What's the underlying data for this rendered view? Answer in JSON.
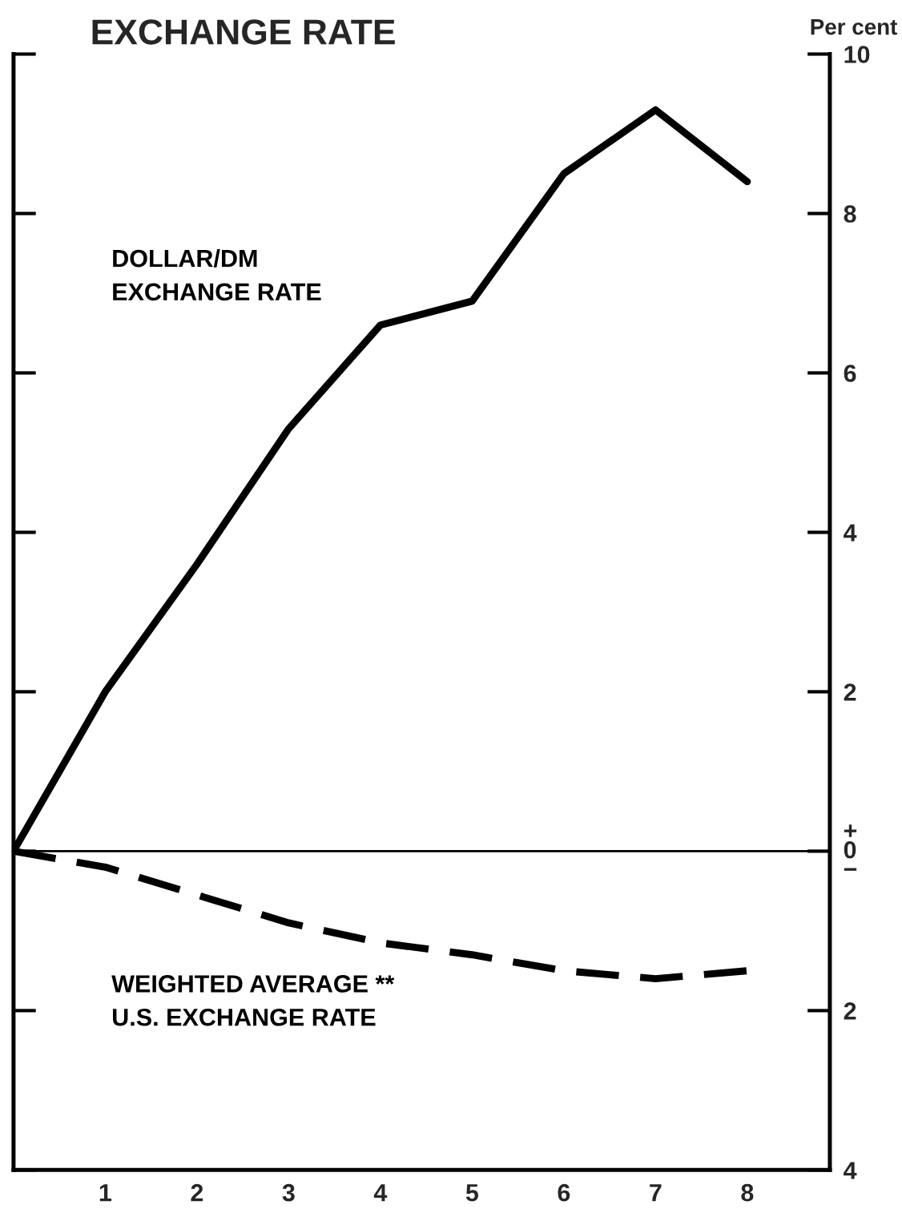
{
  "chart_data": {
    "type": "line",
    "title": "EXCHANGE RATE",
    "ylabel": "Per cent",
    "x": [
      0,
      1,
      2,
      3,
      4,
      5,
      6,
      7,
      8
    ],
    "series": [
      {
        "name": "DOLLAR/DM\nEXCHANGE RATE",
        "color": "#000000",
        "line_style": "solid",
        "values": [
          0,
          2.0,
          3.6,
          5.3,
          6.6,
          6.9,
          8.5,
          9.3,
          8.4
        ]
      },
      {
        "name": "WEIGHTED AVERAGE **\nU.S. EXCHANGE RATE",
        "color": "#000000",
        "line_style": "dashed",
        "values": [
          0,
          -0.2,
          -0.55,
          -0.9,
          -1.15,
          -1.3,
          -1.5,
          -1.6,
          -1.5
        ]
      }
    ],
    "xlim": [
      0,
      8.9
    ],
    "xticks": [
      1,
      2,
      3,
      4,
      5,
      6,
      7,
      8
    ],
    "ylim": [
      -4,
      10
    ],
    "yticks": [
      10,
      8,
      6,
      4,
      2,
      {
        "value": 0,
        "label": "+\n0\n−"
      },
      {
        "value": -2,
        "label": "2"
      },
      {
        "value": -4,
        "label": "4"
      }
    ],
    "ref_lines": [
      {
        "axis": "y",
        "value": 0,
        "color": "#000000"
      }
    ],
    "grid": false,
    "legend": false,
    "marker": "none"
  }
}
